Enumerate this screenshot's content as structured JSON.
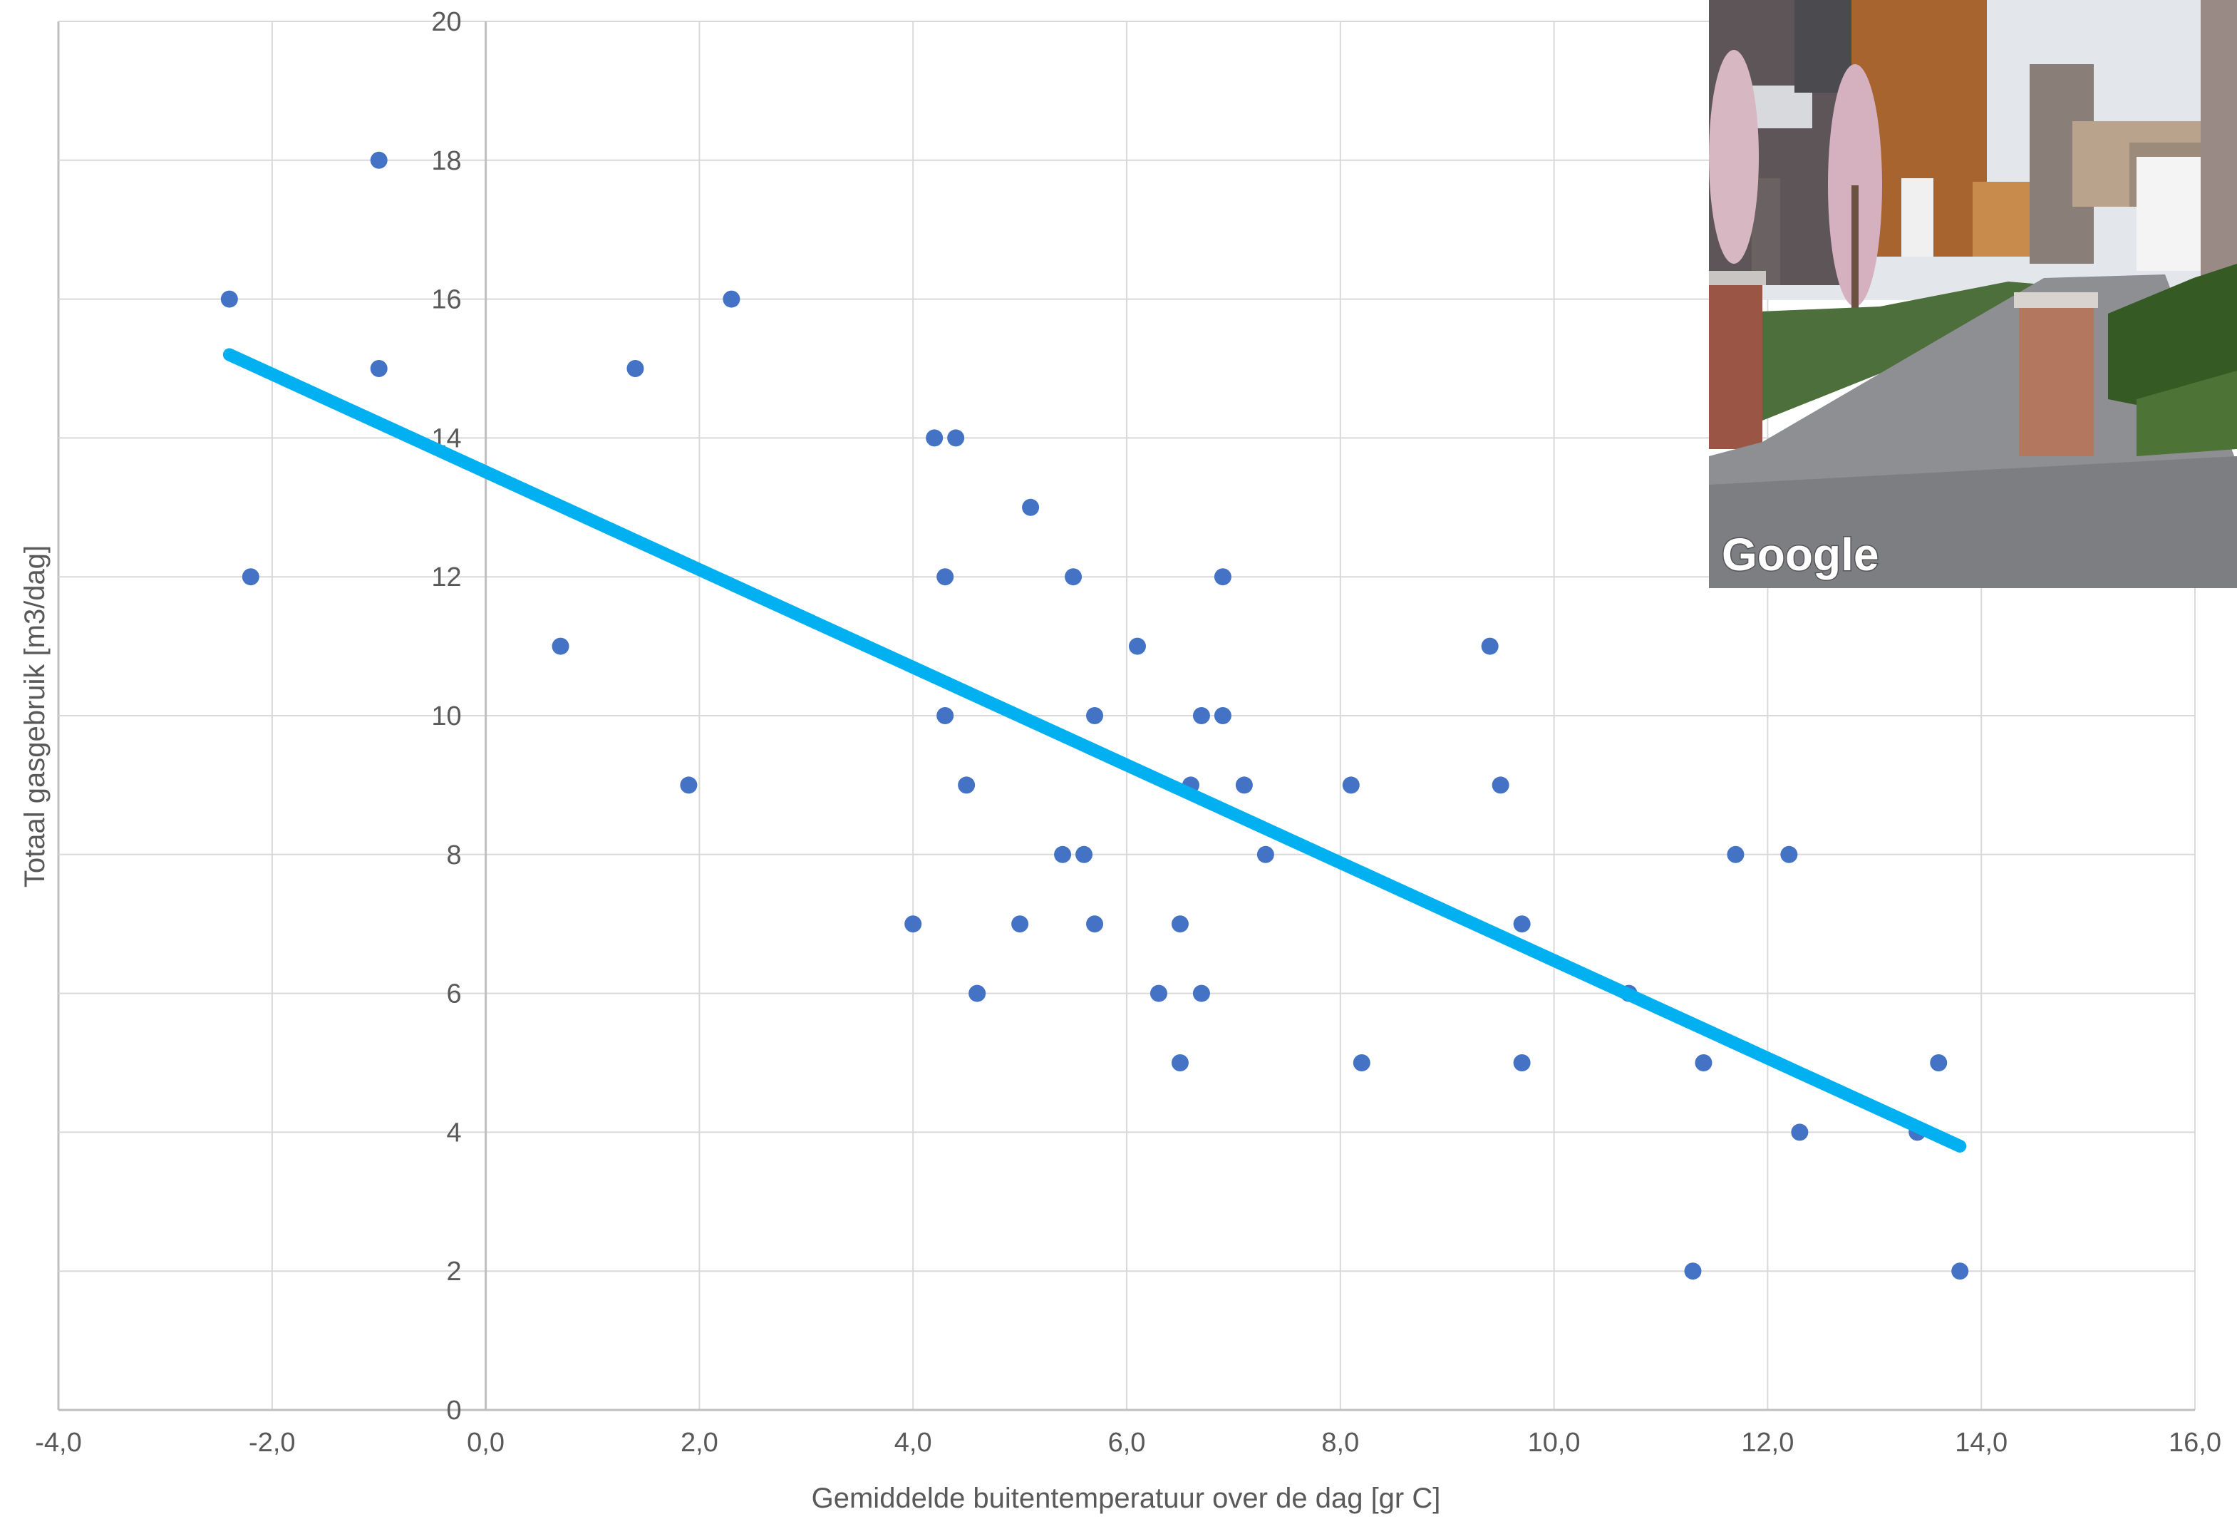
{
  "chart_data": {
    "type": "scatter",
    "xlabel": "Gemiddelde buitentemperatuur over de dag [gr C]",
    "ylabel": "Totaal gasgebruik [m3/dag]",
    "xlim": [
      -4,
      16
    ],
    "ylim": [
      0,
      20
    ],
    "x_ticks": [
      "-4,0",
      "-2,0",
      "0,0",
      "2,0",
      "4,0",
      "6,0",
      "8,0",
      "10,0",
      "12,0",
      "14,0",
      "16,0"
    ],
    "y_ticks": [
      "0",
      "2",
      "4",
      "6",
      "8",
      "10",
      "12",
      "14",
      "16",
      "18",
      "20"
    ],
    "grid": true,
    "point_color": "#4472c4",
    "trendline": {
      "type": "linear",
      "color": "#00b0f0",
      "from": [
        -2.4,
        15.2
      ],
      "to": [
        13.8,
        3.8
      ]
    },
    "points": [
      [
        -2.4,
        16
      ],
      [
        -2.2,
        12
      ],
      [
        -1.0,
        18
      ],
      [
        -1.0,
        15
      ],
      [
        0.7,
        11
      ],
      [
        1.4,
        15
      ],
      [
        1.9,
        9
      ],
      [
        2.3,
        16
      ],
      [
        4.0,
        7
      ],
      [
        4.2,
        14
      ],
      [
        4.3,
        12
      ],
      [
        4.3,
        10
      ],
      [
        4.4,
        14
      ],
      [
        4.5,
        9
      ],
      [
        4.6,
        6
      ],
      [
        5.0,
        7
      ],
      [
        5.1,
        13
      ],
      [
        5.4,
        8
      ],
      [
        5.5,
        12
      ],
      [
        5.6,
        8
      ],
      [
        5.7,
        10
      ],
      [
        5.7,
        7
      ],
      [
        6.1,
        11
      ],
      [
        6.3,
        6
      ],
      [
        6.5,
        7
      ],
      [
        6.5,
        5
      ],
      [
        6.6,
        9
      ],
      [
        6.7,
        10
      ],
      [
        6.7,
        6
      ],
      [
        6.9,
        12
      ],
      [
        6.9,
        10
      ],
      [
        7.1,
        9
      ],
      [
        7.3,
        8
      ],
      [
        8.1,
        9
      ],
      [
        8.2,
        5
      ],
      [
        9.4,
        11
      ],
      [
        9.5,
        9
      ],
      [
        9.7,
        7
      ],
      [
        9.7,
        5
      ],
      [
        10.7,
        6
      ],
      [
        11.3,
        2
      ],
      [
        11.4,
        5
      ],
      [
        11.7,
        8
      ],
      [
        12.2,
        8
      ],
      [
        12.3,
        4
      ],
      [
        13.4,
        4
      ],
      [
        13.6,
        5
      ],
      [
        13.8,
        2
      ]
    ]
  },
  "inset_photo": {
    "watermark": "Google",
    "description_icon": "street-view-photo"
  }
}
